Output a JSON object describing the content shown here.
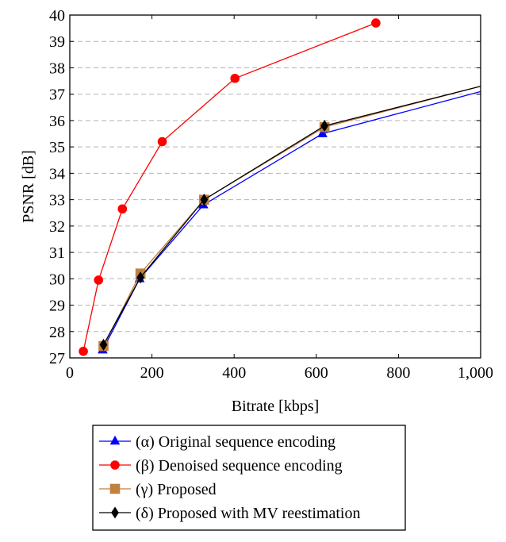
{
  "chart_data": {
    "type": "line",
    "title": "",
    "xlabel": "Bitrate [kbps]",
    "ylabel": "PSNR [dB]",
    "xlim": [
      0,
      1000
    ],
    "ylim": [
      27,
      40
    ],
    "xticks": [
      0,
      200,
      400,
      600,
      800,
      1000
    ],
    "xtick_labels": [
      "0",
      "200",
      "400",
      "600",
      "800",
      "1,000"
    ],
    "yticks": [
      27,
      28,
      29,
      30,
      31,
      32,
      33,
      34,
      35,
      36,
      37,
      38,
      39,
      40
    ],
    "grid": "horizontal dashed",
    "legend_position": "below plot",
    "series": [
      {
        "name": "(α) Original sequence encoding",
        "color": "#0000ff",
        "marker": "triangle",
        "x": [
          80,
          170,
          325,
          615,
          1000
        ],
        "y": [
          27.3,
          30.0,
          32.8,
          35.5,
          37.1
        ]
      },
      {
        "name": "(β) Denoised sequence encoding",
        "color": "#ff0000",
        "marker": "circle",
        "x": [
          33,
          70,
          128,
          225,
          402,
          745
        ],
        "y": [
          27.25,
          29.95,
          32.65,
          35.2,
          37.6,
          39.7
        ]
      },
      {
        "name": "(γ) Proposed",
        "color": "#bf8040",
        "marker": "square",
        "x": [
          82,
          172,
          327,
          620,
          1000
        ],
        "y": [
          27.45,
          30.2,
          33.0,
          35.75,
          37.3
        ]
      },
      {
        "name": "(δ) Proposed with MV reestimation",
        "color": "#000000",
        "marker": "diamond",
        "x": [
          82,
          172,
          327,
          620,
          1000
        ],
        "y": [
          27.5,
          30.05,
          33.0,
          35.8,
          37.3
        ]
      }
    ]
  }
}
